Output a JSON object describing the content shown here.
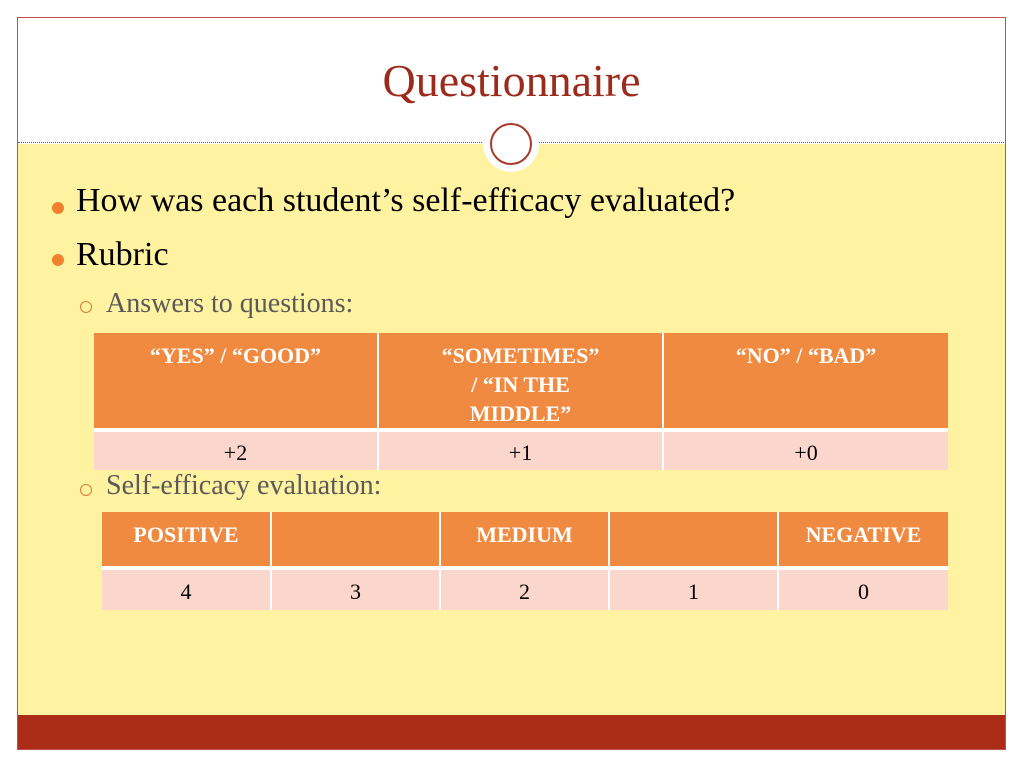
{
  "slide": {
    "title": "Questionnaire",
    "bullets": [
      "How was each student’s self-efficacy evaluated?",
      "Rubric"
    ],
    "subbullets": [
      "Answers to questions:",
      "Self-efficacy evaluation:"
    ]
  },
  "answers_table": {
    "headers": [
      "“YES” / “GOOD”",
      "“SOMETIMES” / “IN THE MIDDLE”",
      "“NO” / “BAD”"
    ],
    "values": [
      "+2",
      "+1",
      "+0"
    ]
  },
  "evaluation_table": {
    "headers": [
      "POSITIVE",
      "",
      "MEDIUM",
      "",
      "NEGATIVE"
    ],
    "values": [
      "4",
      "3",
      "2",
      "1",
      "0"
    ]
  },
  "colors": {
    "accent": "#f0822f",
    "title": "#9c2b1c",
    "header_fill": "#f08a40",
    "row_fill": "#fbd6cc",
    "body_background": "#fff2a0",
    "footer": "#ab2d17"
  }
}
